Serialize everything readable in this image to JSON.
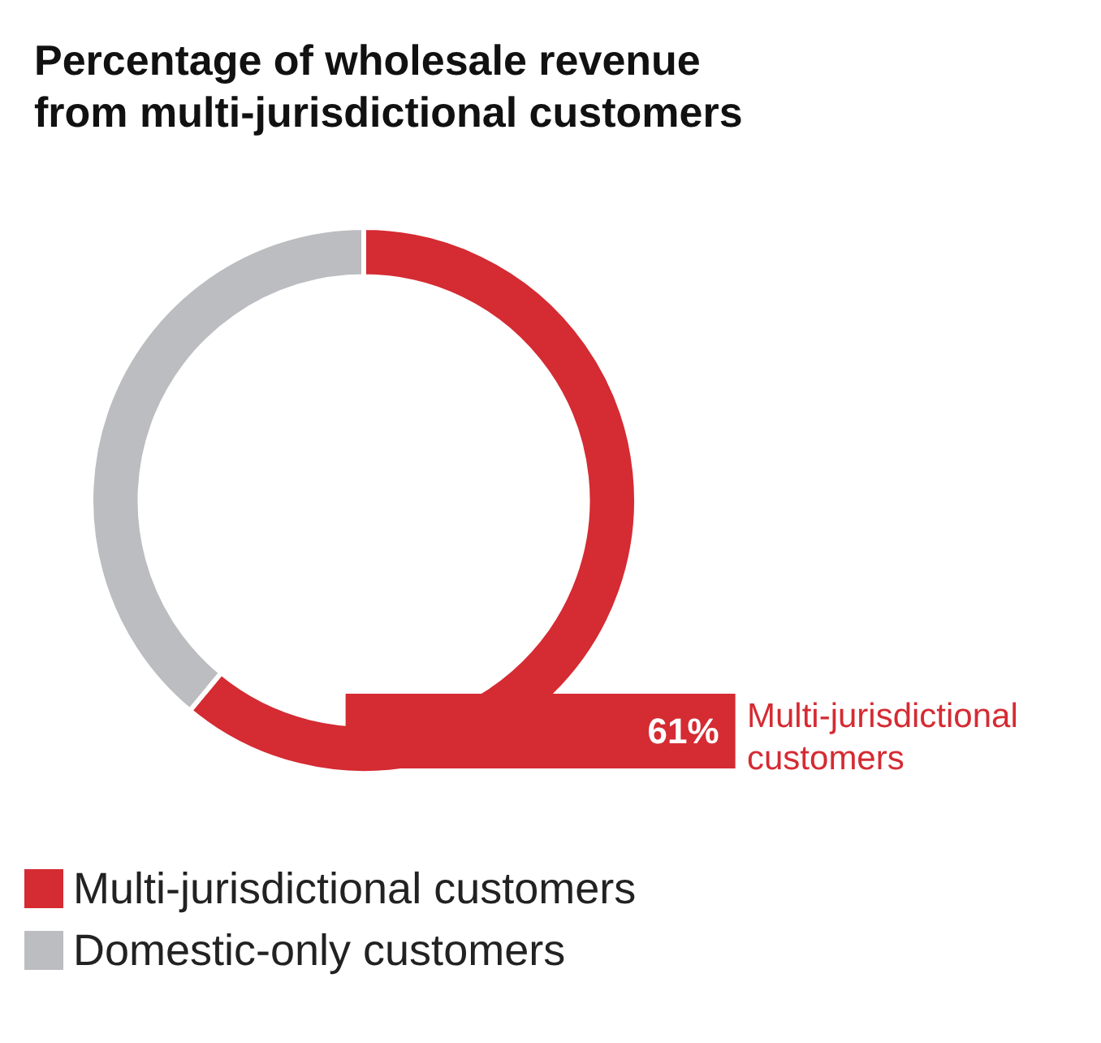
{
  "chart_data": {
    "type": "donut",
    "title": "Percentage of wholesale revenue\nfrom multi-jurisdictional customers",
    "categories": [
      "Multi-jurisdictional customers",
      "Domestic-only customers"
    ],
    "values": [
      61,
      39
    ],
    "colors": [
      "#d52b33",
      "#bcbdc0"
    ],
    "value_labels": [
      "61%",
      null
    ],
    "legend": "bottom left"
  }
}
